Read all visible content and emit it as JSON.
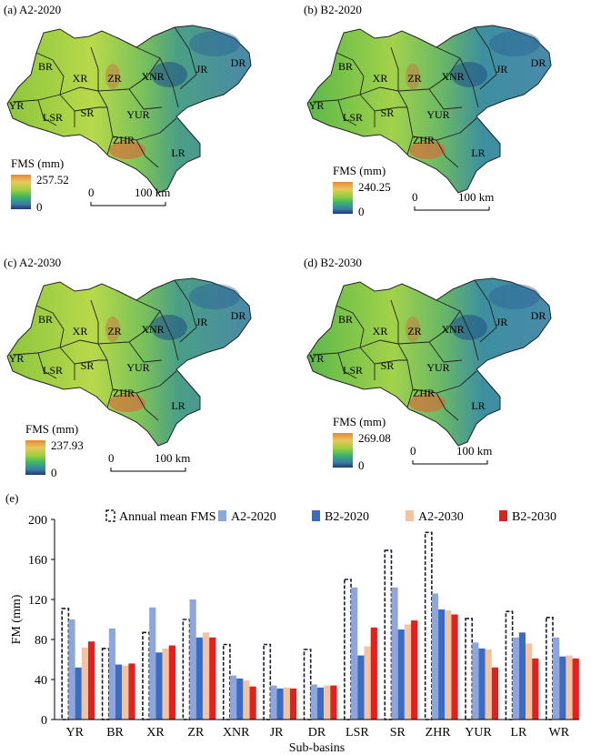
{
  "panels": [
    {
      "label": "(a) A2-2020",
      "legend_title": "FMS (mm)",
      "legend_max": "257.52",
      "legend_min": "0",
      "scale_zero": "0",
      "scale_label": "100 km",
      "subbasins": [
        "BR",
        "XR",
        "ZR",
        "XNR",
        "JR",
        "DR",
        "YR",
        "LSR",
        "SR",
        "YUR",
        "ZHR",
        "LR"
      ]
    },
    {
      "label": "(b) B2-2020",
      "legend_title": "FMS (mm)",
      "legend_max": "240.25",
      "legend_min": "0",
      "scale_zero": "0",
      "scale_label": "100 km",
      "subbasins": [
        "BR",
        "XR",
        "ZR",
        "XNR",
        "JR",
        "DR",
        "YR",
        "LSR",
        "SR",
        "YUR",
        "ZHR",
        "LR"
      ]
    },
    {
      "label": "(c) A2-2030",
      "legend_title": "FMS (mm)",
      "legend_max": "237.93",
      "legend_min": "0",
      "scale_zero": "0",
      "scale_label": "100 km",
      "subbasins": [
        "BR",
        "XR",
        "ZR",
        "XNR",
        "JR",
        "DR",
        "YR",
        "LSR",
        "SR",
        "YUR",
        "ZHR",
        "LR"
      ]
    },
    {
      "label": "(d) B2-2030",
      "legend_title": "FMS (mm)",
      "legend_max": "269.08",
      "legend_min": "0",
      "scale_zero": "0",
      "scale_label": "100 km",
      "subbasins": [
        "BR",
        "XR",
        "ZR",
        "XNR",
        "JR",
        "DR",
        "YR",
        "LSR",
        "SR",
        "YUR",
        "ZHR",
        "LR"
      ]
    }
  ],
  "chart_label": "(e)",
  "chart_data": {
    "type": "bar",
    "xlabel": "Sub-basins",
    "ylabel": "FM (mm)",
    "ylim": [
      0,
      200
    ],
    "yticks": [
      0,
      40,
      80,
      120,
      160,
      200
    ],
    "legend_position": "top",
    "categories": [
      "YR",
      "BR",
      "XR",
      "ZR",
      "XNR",
      "JR",
      "DR",
      "LSR",
      "SR",
      "ZHR",
      "YUR",
      "LR",
      "WR"
    ],
    "series": [
      {
        "name": "Annual mean FMS",
        "style": "dashed-outline",
        "color": "#1a1a2e",
        "values": [
          111,
          71,
          87,
          100,
          75,
          75,
          70,
          140,
          169,
          187,
          101,
          108,
          102
        ]
      },
      {
        "name": "A2-2020",
        "color": "#8fa6dc",
        "values": [
          100,
          91,
          112,
          120,
          44,
          34,
          35,
          132,
          132,
          126,
          77,
          82,
          82
        ]
      },
      {
        "name": "B2-2020",
        "color": "#3a6cc4",
        "values": [
          52,
          55,
          67,
          82,
          41,
          31,
          32,
          64,
          90,
          110,
          71,
          87,
          63
        ]
      },
      {
        "name": "A2-2030",
        "color": "#f4c4a2",
        "values": [
          72,
          54,
          71,
          87,
          39,
          32,
          34,
          73,
          95,
          109,
          70,
          76,
          64
        ]
      },
      {
        "name": "B2-2030",
        "color": "#e0211f",
        "values": [
          78,
          56,
          74,
          82,
          33,
          31,
          34,
          92,
          99,
          105,
          52,
          61,
          61
        ]
      }
    ]
  }
}
